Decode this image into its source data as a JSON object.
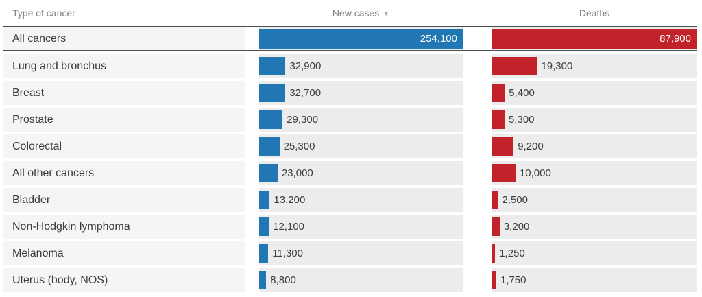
{
  "headers": {
    "type": "Type of cancer",
    "new_cases": "New cases",
    "deaths": "Deaths",
    "sort_icon": "▼",
    "sort_state": "descending by New cases"
  },
  "colors": {
    "new_cases_bar": "#2177b4",
    "deaths_bar": "#c2222a",
    "label_cell_bg": "#f5f5f5",
    "track_bg": "#ececec",
    "total_row_border": "#4d4d4d",
    "header_text": "#7f7f7f"
  },
  "chart_data": {
    "type": "bar",
    "orientation": "horizontal",
    "title": "",
    "columns": [
      "Type of cancer",
      "New cases",
      "Deaths"
    ],
    "sort": {
      "column": "New cases",
      "direction": "descending"
    },
    "scale": {
      "new_cases_max": 254100,
      "deaths_max": 87900,
      "note": "each column's bars scale independently so the All cancers total fills the track"
    },
    "rows": [
      {
        "label": "All cancers",
        "new_cases": 254100,
        "new_cases_text": "254,100",
        "deaths": 87900,
        "deaths_text": "87,900",
        "is_total": true
      },
      {
        "label": "Lung and bronchus",
        "new_cases": 32900,
        "new_cases_text": "32,900",
        "deaths": 19300,
        "deaths_text": "19,300",
        "is_total": false
      },
      {
        "label": "Breast",
        "new_cases": 32700,
        "new_cases_text": "32,700",
        "deaths": 5400,
        "deaths_text": "5,400",
        "is_total": false
      },
      {
        "label": "Prostate",
        "new_cases": 29300,
        "new_cases_text": "29,300",
        "deaths": 5300,
        "deaths_text": "5,300",
        "is_total": false
      },
      {
        "label": "Colorectal",
        "new_cases": 25300,
        "new_cases_text": "25,300",
        "deaths": 9200,
        "deaths_text": "9,200",
        "is_total": false
      },
      {
        "label": "All other cancers",
        "new_cases": 23000,
        "new_cases_text": "23,000",
        "deaths": 10000,
        "deaths_text": "10,000",
        "is_total": false
      },
      {
        "label": "Bladder",
        "new_cases": 13200,
        "new_cases_text": "13,200",
        "deaths": 2500,
        "deaths_text": "2,500",
        "is_total": false
      },
      {
        "label": "Non-Hodgkin lymphoma",
        "new_cases": 12100,
        "new_cases_text": "12,100",
        "deaths": 3200,
        "deaths_text": "3,200",
        "is_total": false
      },
      {
        "label": "Melanoma",
        "new_cases": 11300,
        "new_cases_text": "11,300",
        "deaths": 1250,
        "deaths_text": "1,250",
        "is_total": false
      },
      {
        "label": "Uterus (body, NOS)",
        "new_cases": 8800,
        "new_cases_text": "8,800",
        "deaths": 1750,
        "deaths_text": "1,750",
        "is_total": false
      }
    ]
  }
}
